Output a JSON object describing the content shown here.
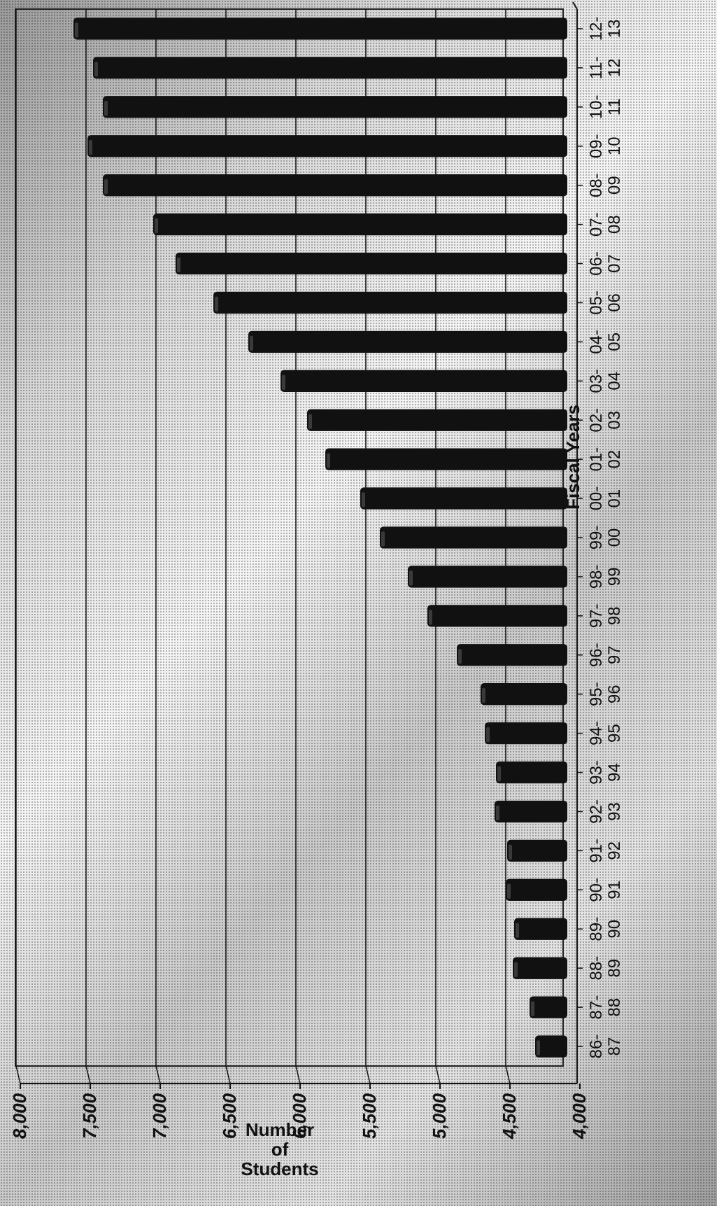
{
  "chart_data": {
    "type": "bar",
    "title": "",
    "xlabel": "Fiscal Years",
    "ylabel_lines": [
      "Number",
      "of",
      "Students"
    ],
    "ylim": [
      4000,
      8000
    ],
    "yticks": [
      "4,000",
      "4,500",
      "5,000",
      "5,500",
      "6,000",
      "6,500",
      "7,000",
      "7,500",
      "8,000"
    ],
    "ytick_values": [
      4000,
      4500,
      5000,
      5500,
      6000,
      6500,
      7000,
      7500,
      8000
    ],
    "grid": true,
    "categories": [
      [
        "86-",
        "87"
      ],
      [
        "87-",
        "88"
      ],
      [
        "88-",
        "89"
      ],
      [
        "89-",
        "90"
      ],
      [
        "90-",
        "91"
      ],
      [
        "91-",
        "92"
      ],
      [
        "92-",
        "93"
      ],
      [
        "93-",
        "94"
      ],
      [
        "94-",
        "95"
      ],
      [
        "95-",
        "96"
      ],
      [
        "96-",
        "97"
      ],
      [
        "97-",
        "98"
      ],
      [
        "98-",
        "99"
      ],
      [
        "99-",
        "00"
      ],
      [
        "00-",
        "01"
      ],
      [
        "01-",
        "02"
      ],
      [
        "02-",
        "03"
      ],
      [
        "03-",
        "04"
      ],
      [
        "04-",
        "05"
      ],
      [
        "05-",
        "06"
      ],
      [
        "06-",
        "07"
      ],
      [
        "07-",
        "08"
      ],
      [
        "08-",
        "09"
      ],
      [
        "09-",
        "10"
      ],
      [
        "10-",
        "11"
      ],
      [
        "11-",
        "12"
      ],
      [
        "12-",
        "13"
      ]
    ],
    "values": [
      4250,
      4290,
      4410,
      4400,
      4460,
      4450,
      4540,
      4530,
      4610,
      4640,
      4810,
      5020,
      5160,
      5360,
      5500,
      5750,
      5880,
      6070,
      6300,
      6550,
      6820,
      6980,
      7340,
      7450,
      7340,
      7410,
      7550
    ],
    "bar_color": "#111111"
  }
}
